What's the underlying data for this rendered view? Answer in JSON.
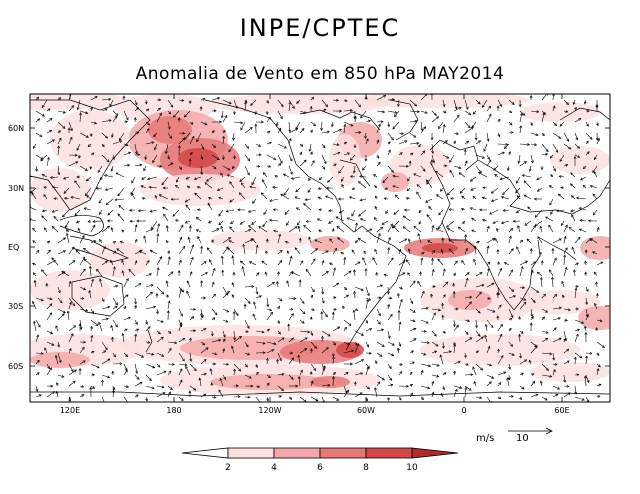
{
  "header": {
    "title": "INPE/CPTEC",
    "subtitle": "Anomalia de Vento em 850 hPa MAY2014"
  },
  "map": {
    "lat_labels": [
      "60N",
      "30N",
      "EQ",
      "30S",
      "60S"
    ],
    "lon_labels": [
      "120E",
      "180",
      "120W",
      "60W",
      "0",
      "60E"
    ]
  },
  "reference_vector": {
    "units": "m/s",
    "value": "10"
  },
  "colorbar": {
    "levels": [
      "2",
      "4",
      "6",
      "8",
      "10"
    ],
    "colors": [
      "#ffffff",
      "#fde0e0",
      "#f5a8a8",
      "#e87878",
      "#d24848",
      "#b42828"
    ]
  }
}
